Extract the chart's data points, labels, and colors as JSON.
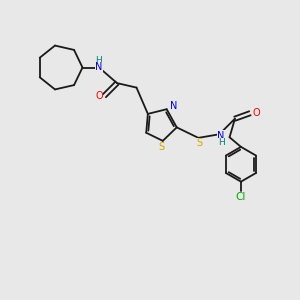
{
  "background_color": "#e8e8e8",
  "bond_color": "#1a1a1a",
  "atom_colors": {
    "N": "#0000cc",
    "H": "#008080",
    "O": "#ff0000",
    "S": "#ccaa00",
    "Cl": "#00aa00",
    "C": "#1a1a1a"
  },
  "figsize": [
    3.0,
    3.0
  ],
  "dpi": 100,
  "lw": 1.3,
  "fs": 7.0,
  "xlim": [
    0,
    10
  ],
  "ylim": [
    0,
    10
  ]
}
